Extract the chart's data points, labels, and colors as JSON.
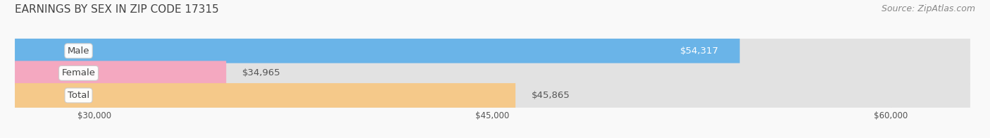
{
  "title": "EARNINGS BY SEX IN ZIP CODE 17315",
  "source": "Source: ZipAtlas.com",
  "categories": [
    "Male",
    "Female",
    "Total"
  ],
  "values": [
    54317,
    34965,
    45865
  ],
  "bar_colors": [
    "#6ab4e8",
    "#f4a8c0",
    "#f5c98a"
  ],
  "bar_bg_color": "#e2e2e2",
  "label_colors": [
    "#ffffff",
    "#555555",
    "#555555"
  ],
  "value_labels": [
    "$54,317",
    "$34,965",
    "$45,865"
  ],
  "x_min": 27000,
  "x_max": 63000,
  "x_ticks": [
    30000,
    45000,
    60000
  ],
  "x_tick_labels": [
    "$30,000",
    "$45,000",
    "$60,000"
  ],
  "background_color": "#f9f9f9",
  "title_fontsize": 11,
  "source_fontsize": 9,
  "bar_height": 0.55,
  "value_label_fontsize": 9.5,
  "category_label_fontsize": 9.5
}
